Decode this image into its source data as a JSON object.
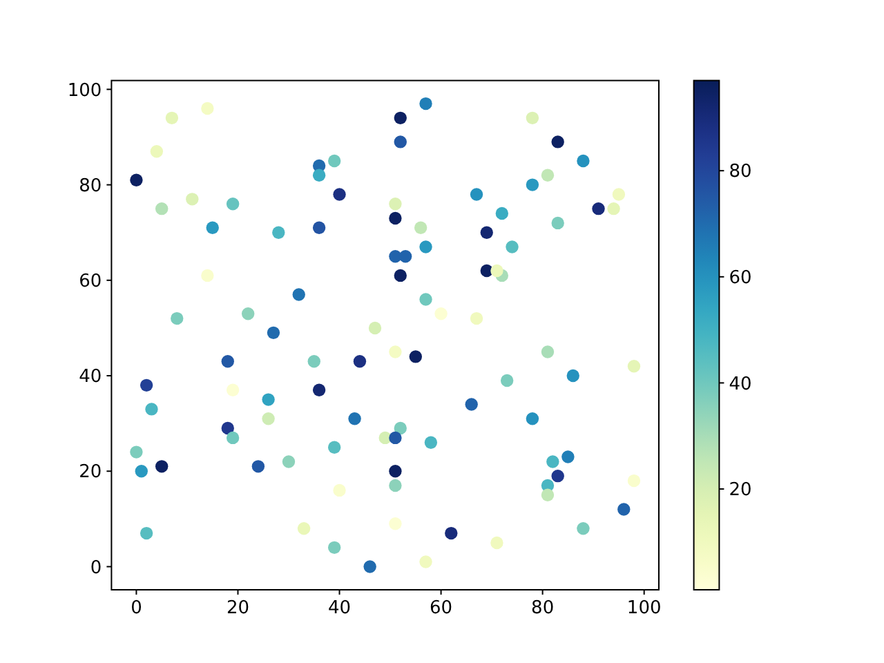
{
  "chart_data": {
    "type": "scatter",
    "x": [
      7,
      14,
      4,
      0,
      5,
      11,
      19,
      15,
      28,
      36,
      39,
      36,
      40,
      36,
      14,
      32,
      8,
      22,
      27,
      47,
      57,
      52,
      52,
      78,
      83,
      88,
      81,
      78,
      95,
      94,
      91,
      83,
      67,
      72,
      69,
      74,
      69,
      72,
      71,
      51,
      51,
      56,
      51,
      53,
      57,
      52,
      57,
      60,
      67,
      18,
      2,
      19,
      3,
      18,
      19,
      0,
      1,
      5,
      2,
      26,
      26,
      24,
      30,
      35,
      36,
      44,
      43,
      39,
      49,
      40,
      33,
      39,
      46,
      51,
      55,
      52,
      51,
      58,
      51,
      51,
      51,
      62,
      57,
      71,
      66,
      73,
      81,
      86,
      98,
      78,
      85,
      82,
      83,
      81,
      81,
      98,
      96,
      88
    ],
    "values": [
      94,
      96,
      87,
      81,
      75,
      77,
      76,
      71,
      70,
      84,
      85,
      82,
      78,
      71,
      61,
      57,
      52,
      53,
      49,
      50,
      97,
      94,
      89,
      94,
      89,
      85,
      82,
      80,
      78,
      75,
      75,
      72,
      78,
      74,
      70,
      67,
      62,
      61,
      62,
      76,
      73,
      71,
      65,
      65,
      67,
      61,
      56,
      53,
      52,
      43,
      38,
      37,
      33,
      29,
      27,
      24,
      20,
      21,
      7,
      35,
      31,
      21,
      22,
      43,
      37,
      43,
      31,
      25,
      27,
      16,
      8,
      4,
      0,
      45,
      44,
      29,
      27,
      26,
      20,
      17,
      9,
      7,
      1,
      5,
      34,
      39,
      45,
      40,
      42,
      31,
      23,
      22,
      19,
      17,
      15,
      18,
      12,
      8
    ],
    "cvalues": [
      15,
      8,
      12,
      95,
      28,
      18,
      42,
      58,
      48,
      70,
      40,
      52,
      88,
      76,
      5,
      68,
      38,
      35,
      70,
      20,
      65,
      95,
      75,
      18,
      95,
      60,
      25,
      58,
      10,
      15,
      90,
      38,
      60,
      52,
      92,
      45,
      95,
      30,
      12,
      18,
      95,
      25,
      72,
      72,
      58,
      95,
      40,
      3,
      10,
      75,
      82,
      3,
      48,
      85,
      40,
      38,
      58,
      95,
      45,
      55,
      22,
      75,
      35,
      38,
      92,
      88,
      68,
      45,
      20,
      5,
      13,
      38,
      70,
      8,
      95,
      38,
      75,
      48,
      95,
      35,
      3,
      90,
      10,
      10,
      72,
      38,
      30,
      60,
      15,
      60,
      65,
      48,
      85,
      48,
      25,
      5,
      72,
      38
    ],
    "xlim": [
      -4.9,
      102.9
    ],
    "ylim": [
      -4.85,
      101.85
    ],
    "xticks": [
      0,
      20,
      40,
      60,
      80,
      100
    ],
    "yticks": [
      0,
      20,
      40,
      60,
      80,
      100
    ],
    "clim": [
      1,
      97
    ],
    "cticks": [
      20,
      40,
      60,
      80
    ],
    "marker": "circle"
  }
}
